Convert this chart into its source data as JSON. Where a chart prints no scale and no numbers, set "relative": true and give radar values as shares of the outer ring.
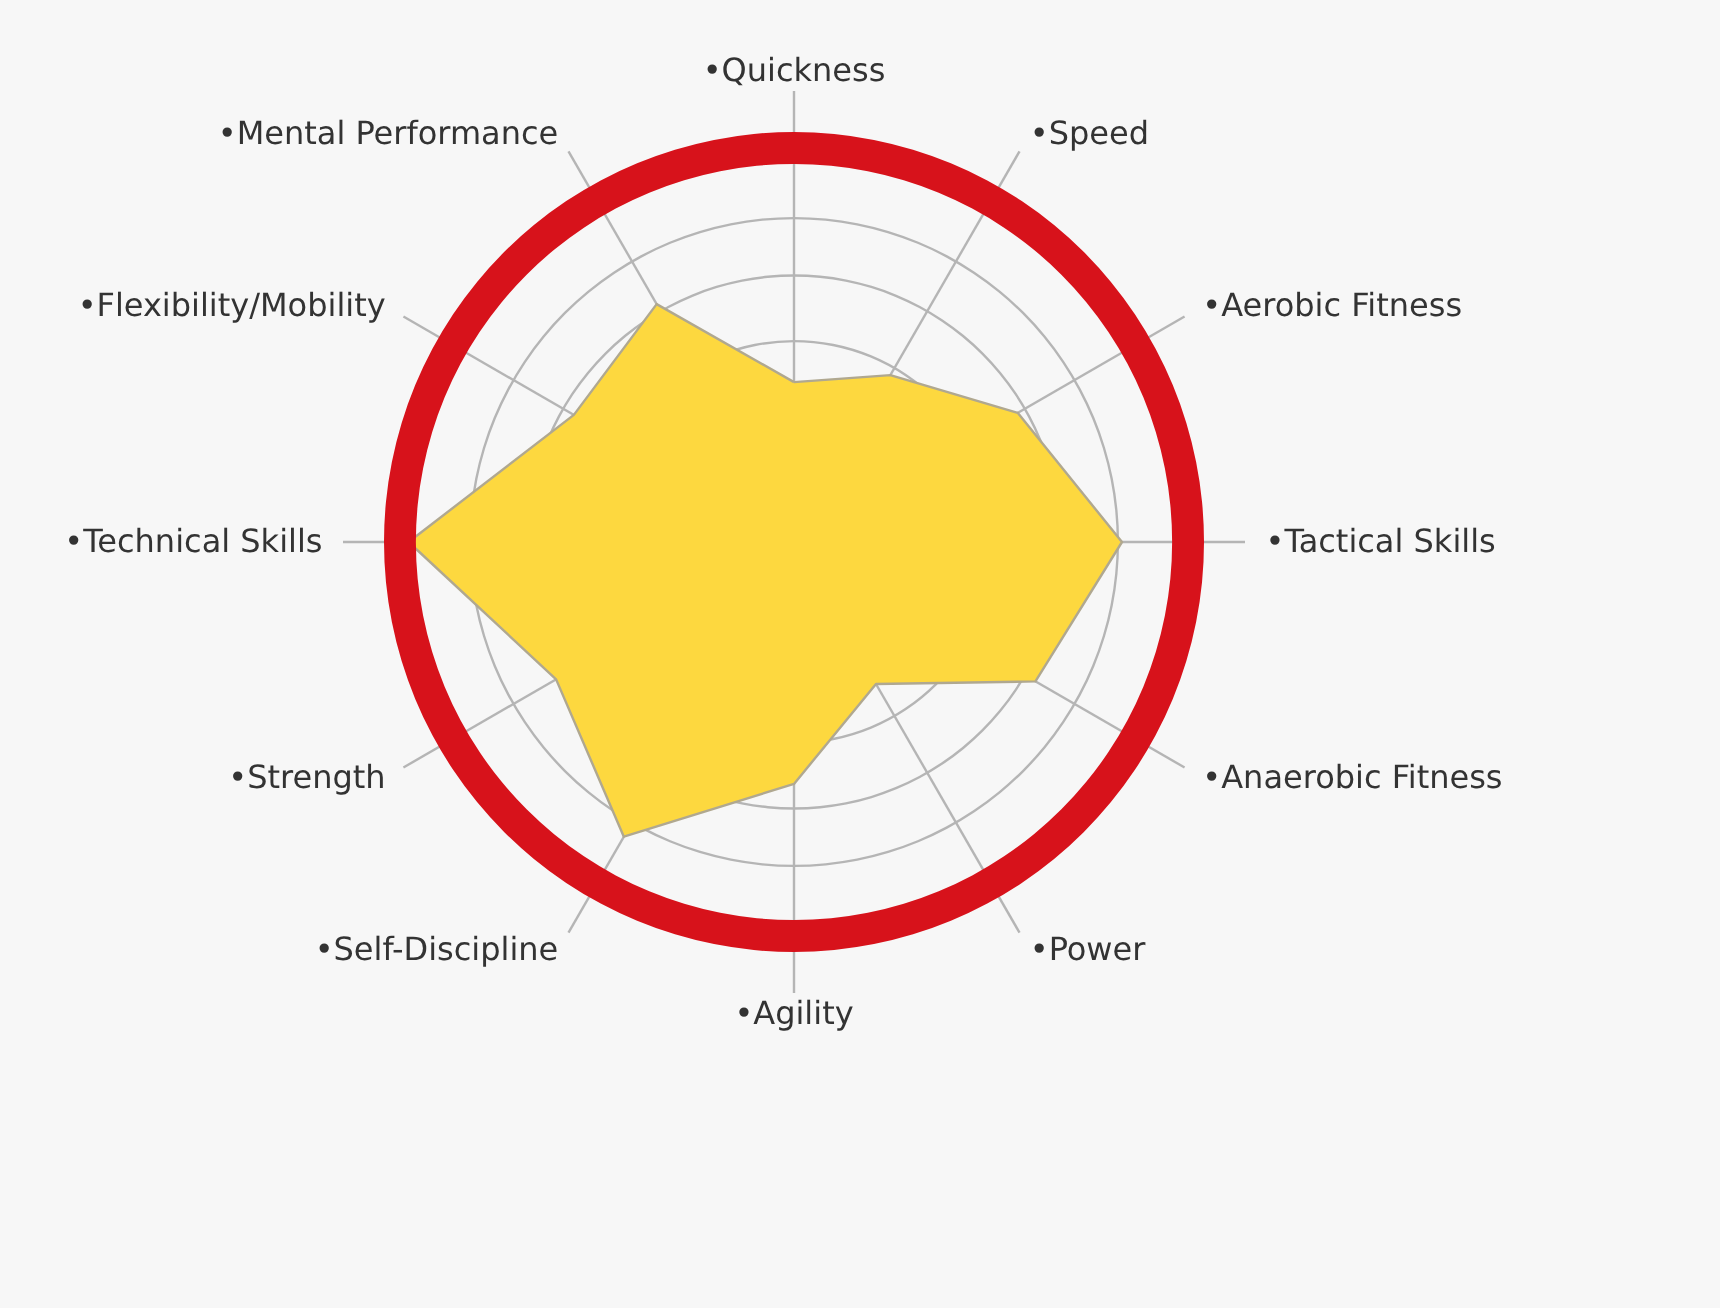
{
  "chart_data": {
    "type": "radar",
    "relative": true,
    "grid": true,
    "categories": [
      "•Quickness",
      "•Speed",
      "•Aerobic Fitness",
      "•Tactical Skills",
      "•Anaerobic Fitness",
      "•Power",
      "•Agility",
      "•Self-Discipline",
      "•Strength",
      "•Technical Skills",
      "•Flexibility/Mobility",
      "•Mental Performance"
    ],
    "series": [
      {
        "color": "#fdd83f",
        "values": [
          0.39,
          0.47,
          0.63,
          0.8,
          0.68,
          0.4,
          0.59,
          0.83,
          0.67,
          0.94,
          0.62,
          0.67
        ]
      }
    ]
  }
}
